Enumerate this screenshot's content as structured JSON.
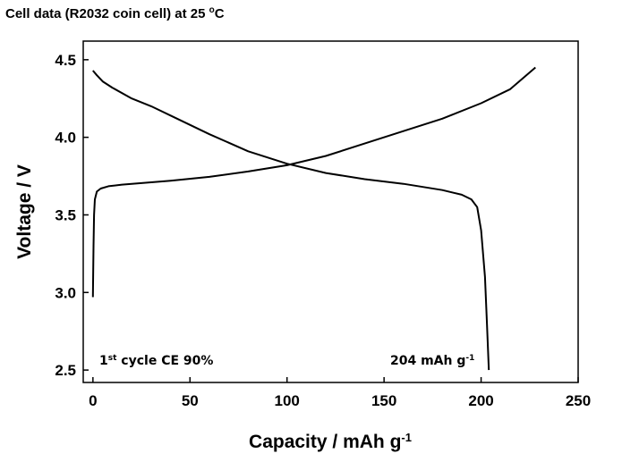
{
  "chart_data": {
    "type": "line",
    "title": {
      "before": "Cell data (R2032 coin cell) at 25 ",
      "sup": "o",
      "after": "C"
    },
    "xlabel": {
      "before": "Capacity / mAh g",
      "sup": "-1"
    },
    "ylabel": "Voltage / V",
    "xlim": [
      -5,
      250
    ],
    "ylim": [
      2.42,
      4.62
    ],
    "xticks": [
      "0",
      "50",
      "100",
      "150",
      "200",
      "250"
    ],
    "yticks": [
      "2.5",
      "3.0",
      "3.5",
      "4.0",
      "4.5"
    ],
    "grid": false,
    "line_color": "#000000",
    "series": [
      {
        "x": [
          0,
          0.3,
          0.6,
          1,
          2,
          4,
          8,
          15,
          25,
          40,
          60,
          80,
          100,
          120,
          140,
          160,
          180,
          200,
          215,
          228
        ],
        "y": [
          2.97,
          3.3,
          3.5,
          3.6,
          3.65,
          3.67,
          3.685,
          3.695,
          3.705,
          3.72,
          3.745,
          3.78,
          3.82,
          3.88,
          3.96,
          4.04,
          4.12,
          4.22,
          4.31,
          4.45
        ]
      },
      {
        "x": [
          0,
          2,
          5,
          10,
          20,
          30,
          40,
          60,
          80,
          100,
          120,
          140,
          160,
          180,
          190,
          195,
          198,
          200,
          202,
          203,
          204
        ],
        "y": [
          4.43,
          4.4,
          4.36,
          4.32,
          4.25,
          4.2,
          4.14,
          4.02,
          3.91,
          3.83,
          3.77,
          3.73,
          3.7,
          3.66,
          3.63,
          3.6,
          3.55,
          3.4,
          3.1,
          2.8,
          2.5
        ]
      }
    ],
    "annotations": {
      "ce": {
        "sup_prefix": "1",
        "sup": "st",
        "after": " cycle CE 90%"
      },
      "capacity": {
        "before": "204 mAh g",
        "sup": "-1"
      }
    }
  }
}
